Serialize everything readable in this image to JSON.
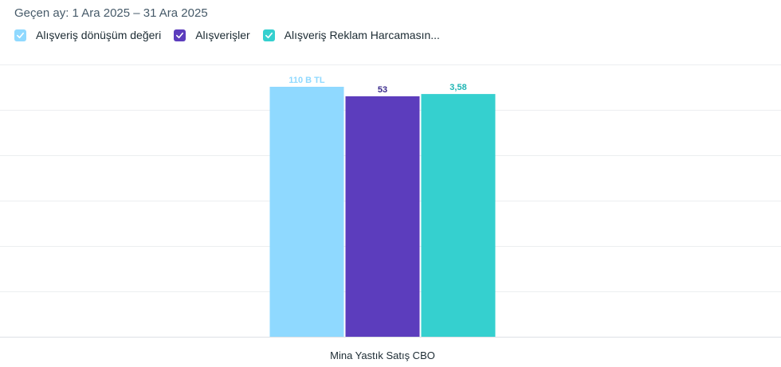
{
  "header": {
    "period_label": "Geçen ay: 1 Ara 2025 – 31 Ara 2025"
  },
  "legend": {
    "items": [
      {
        "label": "Alışveriş dönüşüm değeri",
        "color": "#8fd9ff",
        "icon": "check-icon"
      },
      {
        "label": "Alışverişler",
        "color": "#5c3dbd",
        "icon": "check-icon"
      },
      {
        "label": "Alışveriş Reklam Harcamasın...",
        "color": "#35d0cf",
        "icon": "check-icon"
      }
    ]
  },
  "chart_data": {
    "type": "bar",
    "categories": [
      "Mina Yastık Satış CBO"
    ],
    "series": [
      {
        "name": "Alışveriş dönüşüm değeri",
        "values": [
          110
        ],
        "data_label": "110 B TL",
        "color": "#8fd9ff",
        "label_color": "#8fd9ff",
        "normalized_height": 1.0
      },
      {
        "name": "Alışverişler",
        "values": [
          53
        ],
        "data_label": "53",
        "color": "#5c3dbd",
        "label_color": "#3a2a8c",
        "normalized_height": 0.962
      },
      {
        "name": "Alışveriş Reklam Harcamasın...",
        "values": [
          3.58
        ],
        "data_label": "3,58",
        "color": "#35d0cf",
        "label_color": "#1fb5b4",
        "normalized_height": 0.971
      }
    ],
    "grid": true
  }
}
